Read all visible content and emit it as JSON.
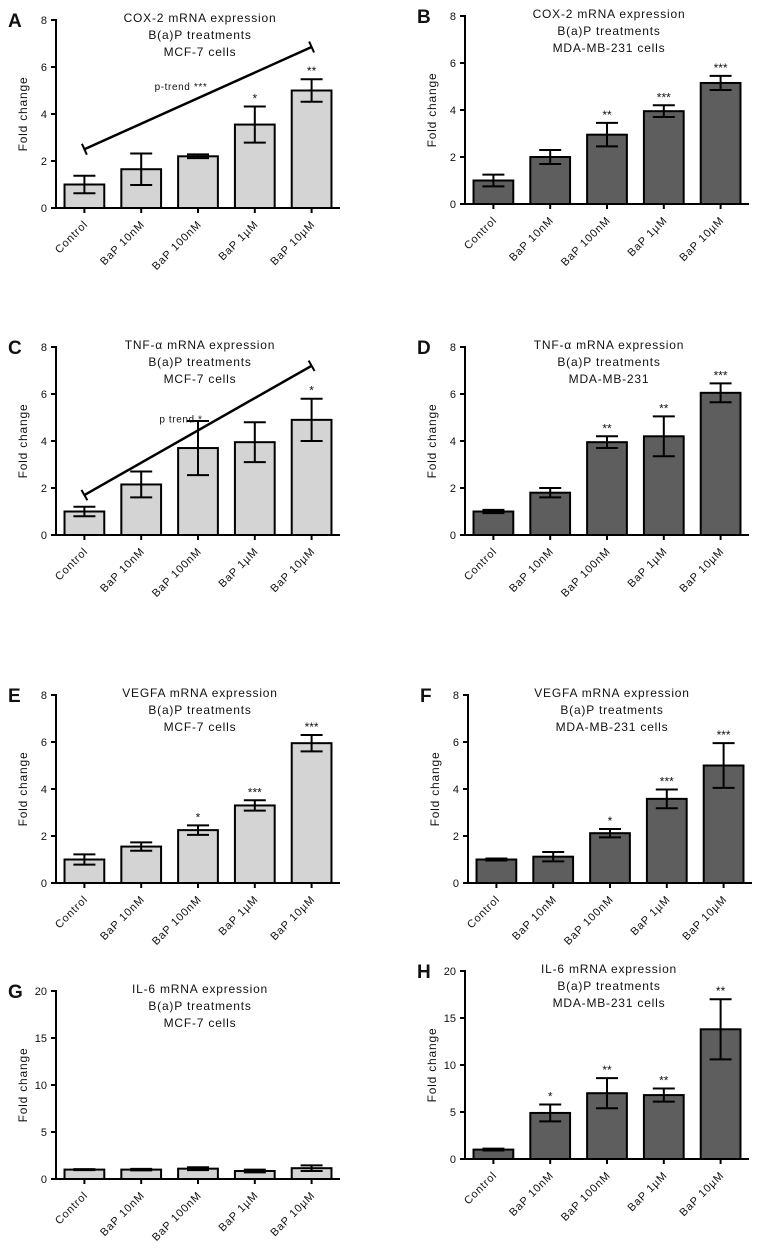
{
  "chart_data": [
    {
      "panel": "A",
      "type": "bar",
      "title": [
        "COX-2 mRNA expression",
        "B(a)P treatments",
        "MCF-7 cells"
      ],
      "ylabel": "Fold change",
      "xlabel": "",
      "ylim": [
        0,
        8
      ],
      "yticks": [
        0,
        2,
        4,
        6,
        8
      ],
      "categories": [
        "Control",
        "BaP 10nM",
        "BaP 100nM",
        "BaP 1µM",
        "BaP 10µM"
      ],
      "values": [
        1.0,
        1.65,
        2.2,
        3.55,
        5.0
      ],
      "errors": [
        0.37,
        0.67,
        0.08,
        0.77,
        0.48
      ],
      "significance": [
        "",
        "",
        "",
        "*",
        "**"
      ],
      "fill": "#d4d4d4",
      "trend": {
        "label": "p-trend ***",
        "from": 2.5,
        "to": 6.85
      }
    },
    {
      "panel": "B",
      "type": "bar",
      "title": [
        "COX-2 mRNA expression",
        "B(a)P treatments",
        "MDA-MB-231 cells"
      ],
      "ylabel": "Fold change",
      "xlabel": "",
      "ylim": [
        0,
        8
      ],
      "yticks": [
        0,
        2,
        4,
        6,
        8
      ],
      "categories": [
        "Control",
        "BaP 10nM",
        "BaP 100nM",
        "BaP 1µM",
        "BaP 10µM"
      ],
      "values": [
        1.0,
        2.0,
        2.95,
        3.95,
        5.15
      ],
      "errors": [
        0.25,
        0.3,
        0.5,
        0.25,
        0.3
      ],
      "significance": [
        "",
        "",
        "**",
        "***",
        "***"
      ],
      "fill": "#5e5e5e"
    },
    {
      "panel": "C",
      "type": "bar",
      "title": [
        "TNF-α mRNA expression",
        "B(a)P treatments",
        "MCF-7 cells"
      ],
      "ylabel": "Fold change",
      "xlabel": "",
      "ylim": [
        0,
        8
      ],
      "yticks": [
        0,
        2,
        4,
        6,
        8
      ],
      "categories": [
        "Control",
        "BaP 10nM",
        "BaP 100nM",
        "BaP 1µM",
        "BaP 10µM"
      ],
      "values": [
        1.0,
        2.15,
        3.7,
        3.95,
        4.9
      ],
      "errors": [
        0.2,
        0.55,
        1.15,
        0.85,
        0.9
      ],
      "significance": [
        "",
        "",
        "",
        "",
        "*"
      ],
      "fill": "#d4d4d4",
      "trend": {
        "label": "p trend *",
        "from": 1.7,
        "to": 7.2
      }
    },
    {
      "panel": "D",
      "type": "bar",
      "title": [
        "TNF-α mRNA expression",
        "B(a)P treatments",
        "MDA-MB-231"
      ],
      "ylabel": "Fold change",
      "xlabel": "",
      "ylim": [
        0,
        8
      ],
      "yticks": [
        0,
        2,
        4,
        6,
        8
      ],
      "categories": [
        "Control",
        "BaP 10nM",
        "BaP 100nM",
        "BaP 1µM",
        "BaP 10µM"
      ],
      "values": [
        1.0,
        1.8,
        3.95,
        4.2,
        6.05
      ],
      "errors": [
        0.07,
        0.2,
        0.25,
        0.85,
        0.4
      ],
      "significance": [
        "",
        "",
        "**",
        "**",
        "***"
      ],
      "fill": "#5e5e5e"
    },
    {
      "panel": "E",
      "type": "bar",
      "title": [
        "VEGFA mRNA expression",
        "B(a)P treatments",
        "MCF-7 cells"
      ],
      "ylabel": "Fold change",
      "xlabel": "",
      "ylim": [
        0,
        8
      ],
      "yticks": [
        0,
        2,
        4,
        6,
        8
      ],
      "categories": [
        "Control",
        "BaP 10nM",
        "BaP 100nM",
        "BaP 1µM",
        "BaP 10µM"
      ],
      "values": [
        1.0,
        1.55,
        2.25,
        3.3,
        5.95
      ],
      "errors": [
        0.22,
        0.18,
        0.2,
        0.22,
        0.35
      ],
      "significance": [
        "",
        "",
        "*",
        "***",
        "***"
      ],
      "fill": "#d4d4d4"
    },
    {
      "panel": "F",
      "type": "bar",
      "title": [
        "VEGFA mRNA expression",
        "B(a)P treatments",
        "MDA-MB-231 cells"
      ],
      "ylabel": "Fold change",
      "xlabel": "",
      "ylim": [
        0,
        8
      ],
      "yticks": [
        0,
        2,
        4,
        6,
        8
      ],
      "categories": [
        "Control",
        "BaP 10nM",
        "BaP 100nM",
        "BaP 1µM",
        "BaP 10µM"
      ],
      "values": [
        1.0,
        1.12,
        2.12,
        3.58,
        5.0
      ],
      "errors": [
        0.04,
        0.2,
        0.18,
        0.4,
        0.95
      ],
      "significance": [
        "",
        "",
        "*",
        "***",
        "***"
      ],
      "fill": "#5e5e5e"
    },
    {
      "panel": "G",
      "type": "bar",
      "title": [
        "IL-6 mRNA expression",
        "B(a)P treatments",
        "MCF-7 cells"
      ],
      "ylabel": "Fold change",
      "xlabel": "",
      "ylim": [
        0,
        20
      ],
      "yticks": [
        0,
        5,
        10,
        15,
        20
      ],
      "categories": [
        "Control",
        "BaP 10nM",
        "BaP 100nM",
        "BaP 1µM",
        "BaP 10µM"
      ],
      "values": [
        1.0,
        1.0,
        1.1,
        0.85,
        1.15
      ],
      "errors": [
        0.05,
        0.08,
        0.15,
        0.15,
        0.3
      ],
      "significance": [
        "",
        "",
        "",
        "",
        ""
      ],
      "fill": "#d4d4d4"
    },
    {
      "panel": "H",
      "type": "bar",
      "title": [
        "IL-6 mRNA expression",
        "B(a)P treatments",
        "MDA-MB-231 cells"
      ],
      "ylabel": "Fold change",
      "xlabel": "",
      "ylim": [
        0,
        20
      ],
      "yticks": [
        0,
        5,
        10,
        15,
        20
      ],
      "categories": [
        "Control",
        "BaP 10nM",
        "BaP 100nM",
        "BaP 1µM",
        "BaP 10µM"
      ],
      "values": [
        1.0,
        4.9,
        7.0,
        6.8,
        13.8
      ],
      "errors": [
        0.1,
        0.9,
        1.6,
        0.7,
        3.2
      ],
      "significance": [
        "",
        "*",
        "**",
        "**",
        "**"
      ],
      "fill": "#5e5e5e"
    }
  ]
}
